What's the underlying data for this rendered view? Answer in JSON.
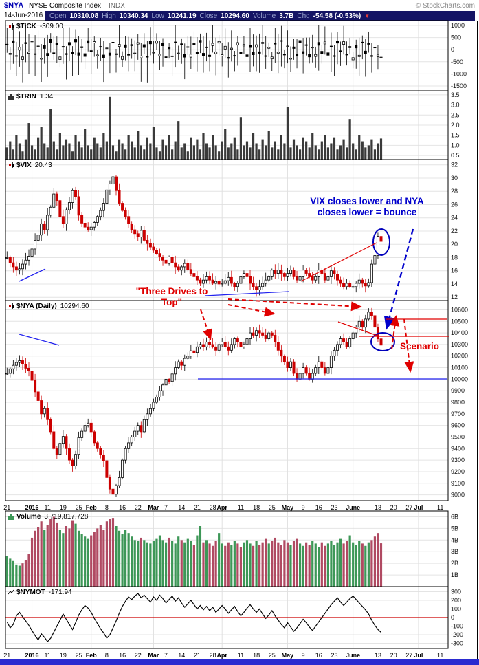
{
  "header": {
    "symbol": "$NYA",
    "name": "NYSE Composite Index",
    "exchange": "INDX",
    "copyright": "© StockCharts.com",
    "date": "14-Jun-2016",
    "quote": {
      "open_label": "Open",
      "open": "10310.08",
      "high_label": "High",
      "high": "10340.34",
      "low_label": "Low",
      "low": "10241.19",
      "close_label": "Close",
      "close": "10294.60",
      "volume_label": "Volume",
      "volume": "3.7B",
      "chg_label": "Chg",
      "chg": "-54.58 (-0.53%)"
    }
  },
  "panel_labels": {
    "tick": {
      "label": "$TICK",
      "value": "-309.00"
    },
    "trin": {
      "label": "$TRIN",
      "value": "1.34"
    },
    "vix": {
      "label": "$VIX",
      "value": "20.43"
    },
    "nya": {
      "label": "$NYA (Daily)",
      "value": "10294.60"
    },
    "volume": {
      "label": "Volume",
      "value": "3,719,817,728"
    },
    "nymot": {
      "label": "$NYMOT",
      "value": "-171.94"
    }
  },
  "annotations": {
    "vix_note_line1": "VIX closes lower and NYA",
    "vix_note_line2": "closes lower = bounce",
    "three_drives_line1": "\"Three Drives to",
    "three_drives_line2": "Top\"",
    "scenario": "Scenario"
  },
  "chart_data": {
    "slots": 142,
    "month_gridline_indices": [
      8,
      27,
      47,
      69,
      90,
      111,
      132
    ],
    "x_labels": [
      {
        "t": "21",
        "i": 0
      },
      {
        "t": "2016",
        "i": 8
      },
      {
        "t": "11",
        "i": 13
      },
      {
        "t": "19",
        "i": 18
      },
      {
        "t": "25",
        "i": 23
      },
      {
        "t": "Feb",
        "i": 27
      },
      {
        "t": "8",
        "i": 32
      },
      {
        "t": "16",
        "i": 37
      },
      {
        "t": "22",
        "i": 42
      },
      {
        "t": "Mar",
        "i": 47
      },
      {
        "t": "7",
        "i": 51
      },
      {
        "t": "14",
        "i": 56
      },
      {
        "t": "21",
        "i": 61
      },
      {
        "t": "28",
        "i": 66
      },
      {
        "t": "Apr",
        "i": 69
      },
      {
        "t": "11",
        "i": 75
      },
      {
        "t": "18",
        "i": 80
      },
      {
        "t": "25",
        "i": 85
      },
      {
        "t": "May",
        "i": 90
      },
      {
        "t": "9",
        "i": 95
      },
      {
        "t": "16",
        "i": 100
      },
      {
        "t": "23",
        "i": 105
      },
      {
        "t": "June",
        "i": 111
      },
      {
        "t": "13",
        "i": 119
      },
      {
        "t": "20",
        "i": 124
      },
      {
        "t": "27",
        "i": 129
      },
      {
        "t": "Jul",
        "i": 132
      },
      {
        "t": "11",
        "i": 139
      }
    ],
    "panels": [
      {
        "key": "tick",
        "type": "candlestick",
        "title": "$TICK",
        "last": -309.0,
        "ylim": [
          -1700,
          1200
        ],
        "axis_ticks": [
          1000,
          500,
          0,
          -500,
          -1000,
          -1500
        ],
        "axis_labels": [
          "1000",
          "500",
          "0",
          "-500",
          "-1000",
          "-1500"
        ],
        "values": [
          200,
          -150,
          300,
          -250,
          100,
          -300,
          250,
          -100,
          350,
          -200,
          150,
          -350,
          50,
          -250,
          300,
          -150,
          200,
          -300,
          100,
          -200,
          180,
          -170,
          320,
          -230,
          120,
          -280,
          270,
          -80,
          330,
          -220,
          130,
          -330,
          70,
          -230,
          280,
          -170,
          220,
          -280,
          80,
          -220,
          210,
          -140,
          290,
          -260,
          90,
          -310,
          240,
          -110,
          360,
          -190,
          160,
          -340,
          40,
          -260,
          310,
          -140,
          190,
          -310,
          110,
          -190,
          190,
          -160,
          310,
          -240,
          110,
          -290,
          260,
          -90,
          340,
          -210,
          140,
          -360,
          60,
          -240,
          290,
          -160,
          210,
          -290,
          90,
          -210,
          200,
          -150,
          300,
          -250,
          100,
          -300,
          250,
          -100,
          350,
          -200,
          150,
          -350,
          50,
          -250,
          300,
          -150,
          200,
          -300,
          100,
          -200,
          180,
          -170,
          320,
          -230,
          120,
          -280,
          270,
          -80,
          330,
          -220,
          130,
          -330,
          70,
          -230,
          280,
          -170,
          220,
          -280,
          80,
          -220,
          -309
        ]
      },
      {
        "key": "trin",
        "type": "bar",
        "title": "$TRIN",
        "last": 1.34,
        "ylim": [
          0.3,
          3.7
        ],
        "axis_ticks": [
          3.5,
          3.0,
          2.5,
          2.0,
          1.5,
          1.0,
          0.5
        ],
        "axis_labels": [
          "3.5",
          "3.0",
          "2.5",
          "2.0",
          "1.5",
          "1.0",
          "0.5"
        ],
        "values": [
          0.9,
          1.2,
          0.8,
          1.5,
          1.1,
          0.7,
          1.3,
          2.1,
          1.0,
          0.8,
          1.4,
          1.9,
          1.1,
          0.9,
          2.8,
          1.2,
          0.8,
          1.6,
          1.0,
          1.3,
          1.1,
          0.7,
          1.5,
          1.2,
          0.9,
          1.8,
          1.0,
          0.8,
          1.4,
          1.1,
          0.9,
          1.6,
          1.2,
          3.4,
          1.0,
          0.7,
          1.3,
          1.1,
          0.8,
          1.5,
          1.2,
          0.9,
          1.7,
          1.0,
          0.8,
          1.4,
          1.1,
          1.9,
          0.9,
          0.7,
          1.3,
          1.0,
          1.5,
          0.8,
          1.2,
          2.2,
          0.9,
          1.1,
          0.7,
          1.4,
          1.0,
          1.3,
          0.8,
          1.6,
          1.1,
          0.9,
          1.5,
          1.0,
          0.7,
          1.2,
          1.8,
          0.9,
          1.1,
          1.4,
          0.8,
          2.4,
          1.0,
          1.2,
          0.9,
          1.6,
          1.1,
          0.8,
          1.3,
          1.0,
          1.7,
          0.9,
          1.2,
          0.8,
          1.5,
          1.1,
          2.9,
          0.9,
          1.3,
          1.0,
          0.8,
          1.4,
          1.2,
          0.9,
          1.6,
          1.0,
          0.8,
          1.2,
          1.5,
          0.9,
          1.1,
          1.4,
          0.8,
          1.0,
          1.3,
          0.9,
          2.3,
          1.1,
          0.8,
          1.5,
          1.2,
          0.9,
          1.0,
          1.3,
          0.8,
          1.1,
          1.34
        ]
      },
      {
        "key": "vix",
        "type": "candlestick",
        "title": "$VIX",
        "last": 20.43,
        "ylim": [
          11.5,
          32.8
        ],
        "axis_ticks": [
          32,
          30,
          28,
          26,
          24,
          22,
          20,
          18,
          16,
          14,
          12
        ],
        "axis_labels": [
          "32",
          "30",
          "28",
          "26",
          "24",
          "22",
          "20",
          "18",
          "16",
          "14",
          "12"
        ],
        "values": [
          18.0,
          17.2,
          16.6,
          16.1,
          16.3,
          17.0,
          17.6,
          18.2,
          19.3,
          20.6,
          21.4,
          23.1,
          22.2,
          24.4,
          25.6,
          27.6,
          26.6,
          24.2,
          23.1,
          25.2,
          26.3,
          28.1,
          27.2,
          24.4,
          23.2,
          22.6,
          22.2,
          22.6,
          23.3,
          24.2,
          25.1,
          26.2,
          28.2,
          29.1,
          30.2,
          28.1,
          26.2,
          25.1,
          24.2,
          23.1,
          22.2,
          21.6,
          21.1,
          22.1,
          20.6,
          20.1,
          19.6,
          19.1,
          18.6,
          18.1,
          17.6,
          17.1,
          18.1,
          17.2,
          16.6,
          16.1,
          16.6,
          17.1,
          16.2,
          15.6,
          15.1,
          14.6,
          14.1,
          14.6,
          15.1,
          14.6,
          14.1,
          14.4,
          14.0,
          14.1,
          14.5,
          15.0,
          14.1,
          13.6,
          14.1,
          15.1,
          15.6,
          15.1,
          14.1,
          13.6,
          13.1,
          13.6,
          14.1,
          14.6,
          15.1,
          16.1,
          15.6,
          16.1,
          15.6,
          15.1,
          15.6,
          16.1,
          15.1,
          14.6,
          15.1,
          16.1,
          15.6,
          15.1,
          14.6,
          15.1,
          16.1,
          15.6,
          14.6,
          15.1,
          16.0,
          15.5,
          14.6,
          14.1,
          13.6,
          14.1,
          13.6,
          13.6,
          14.1,
          14.6,
          14.1,
          13.7,
          14.2,
          17.0,
          18.3,
          21.2,
          20.43
        ]
      },
      {
        "key": "nya",
        "type": "candlestick",
        "title": "$NYA (Daily)",
        "last": 10294.6,
        "ylim": [
          8950,
          10680
        ],
        "axis_ticks": [
          10600,
          10500,
          10400,
          10300,
          10200,
          10100,
          10000,
          9900,
          9800,
          9700,
          9600,
          9500,
          9400,
          9300,
          9200,
          9100,
          9000
        ],
        "axis_labels": [
          "10600",
          "10500",
          "10400",
          "10300",
          "10200",
          "10100",
          "10000",
          "9900",
          "9800",
          "9700",
          "9600",
          "9500",
          "9400",
          "9300",
          "9200",
          "9100",
          "9000"
        ],
        "values": [
          10050,
          10090,
          10120,
          10145,
          10160,
          10130,
          10095,
          10070,
          9990,
          9890,
          9815,
          9700,
          9745,
          9650,
          9545,
          9400,
          9350,
          9445,
          9505,
          9400,
          9300,
          9250,
          9350,
          9495,
          9550,
          9600,
          9620,
          9545,
          9450,
          9400,
          9345,
          9295,
          9150,
          9050,
          9005,
          9080,
          9150,
          9300,
          9400,
          9450,
          9500,
          9550,
          9600,
          9545,
          9650,
          9700,
          9745,
          9800,
          9845,
          9900,
          9950,
          10000,
          9980,
          10045,
          10100,
          10150,
          10120,
          10180,
          10200,
          10245,
          10230,
          10280,
          10300,
          10280,
          10320,
          10300,
          10280,
          10250,
          10300,
          10320,
          10280,
          10250,
          10300,
          10350,
          10320,
          10280,
          10300,
          10350,
          10400,
          10380,
          10420,
          10400,
          10380,
          10350,
          10400,
          10380,
          10320,
          10250,
          10200,
          10150,
          10100,
          10150,
          10050,
          10000,
          10050,
          10100,
          10050,
          10000,
          10050,
          10100,
          10150,
          10100,
          10050,
          10100,
          10200,
          10250,
          10300,
          10350,
          10320,
          10280,
          10350,
          10400,
          10450,
          10500,
          10450,
          10520,
          10580,
          10550,
          10450,
          10349,
          10294.6
        ]
      },
      {
        "key": "volume",
        "type": "bar",
        "color_by": "nya",
        "title": "Volume",
        "last": 3.719,
        "ylim": [
          0,
          6.5
        ],
        "axis_ticks": [
          6,
          5,
          4,
          3,
          2,
          1
        ],
        "axis_labels": [
          "6B",
          "5B",
          "4B",
          "3B",
          "2B",
          "1B"
        ],
        "values": [
          2.6,
          2.4,
          2.2,
          1.9,
          1.8,
          2.0,
          2.3,
          2.8,
          4.2,
          4.8,
          5.1,
          5.6,
          4.9,
          5.3,
          5.8,
          6.0,
          5.5,
          4.9,
          4.6,
          5.2,
          5.0,
          5.7,
          5.4,
          4.8,
          4.5,
          4.3,
          4.1,
          4.4,
          4.7,
          5.0,
          5.3,
          4.9,
          5.6,
          5.8,
          5.9,
          5.2,
          4.8,
          4.5,
          4.9,
          4.6,
          4.3,
          4.0,
          3.9,
          4.2,
          4.0,
          3.8,
          3.7,
          3.9,
          4.1,
          4.4,
          4.0,
          3.8,
          4.2,
          3.9,
          3.7,
          4.3,
          4.0,
          3.8,
          4.1,
          3.9,
          3.6,
          4.4,
          5.2,
          3.8,
          4.0,
          3.7,
          3.5,
          3.9,
          4.6,
          3.7,
          3.5,
          3.8,
          3.6,
          3.9,
          3.7,
          3.4,
          3.8,
          4.0,
          3.7,
          3.5,
          3.9,
          3.6,
          3.8,
          4.1,
          3.7,
          3.9,
          4.2,
          3.8,
          3.6,
          4.0,
          3.8,
          3.6,
          3.9,
          4.1,
          3.7,
          3.5,
          3.8,
          3.6,
          3.9,
          3.7,
          3.4,
          3.8,
          3.5,
          3.7,
          3.9,
          3.6,
          3.8,
          4.1,
          3.7,
          3.9,
          4.4,
          3.8,
          3.6,
          3.9,
          3.7,
          3.5,
          3.8,
          4.0,
          4.3,
          4.6,
          3.719
        ]
      },
      {
        "key": "nymot",
        "type": "line",
        "zero_line": 0,
        "title": "$NYMOT",
        "last": -171.94,
        "ylim": [
          -360,
          360
        ],
        "axis_ticks": [
          300,
          200,
          100,
          0,
          -100,
          -200,
          -300
        ],
        "axis_labels": [
          "300",
          "200",
          "100",
          "0",
          "-100",
          "-200",
          "-300"
        ],
        "values": [
          -50,
          -120,
          -80,
          20,
          60,
          10,
          -40,
          -90,
          -150,
          -210,
          -260,
          -190,
          -230,
          -280,
          -240,
          -170,
          -100,
          -30,
          40,
          -20,
          -80,
          -140,
          -60,
          30,
          90,
          140,
          110,
          60,
          -10,
          -70,
          -130,
          -180,
          -240,
          -200,
          -120,
          -40,
          50,
          130,
          190,
          240,
          210,
          250,
          280,
          230,
          260,
          220,
          180,
          240,
          200,
          260,
          220,
          170,
          210,
          250,
          190,
          230,
          170,
          120,
          160,
          200,
          150,
          100,
          140,
          90,
          130,
          80,
          120,
          60,
          100,
          140,
          100,
          50,
          90,
          130,
          70,
          20,
          60,
          110,
          150,
          100,
          60,
          100,
          40,
          -10,
          30,
          80,
          20,
          -30,
          -80,
          -120,
          -60,
          -110,
          -160,
          -120,
          -70,
          -20,
          -60,
          -110,
          -150,
          -100,
          -50,
          0,
          50,
          100,
          150,
          190,
          230,
          180,
          140,
          180,
          220,
          250,
          210,
          170,
          130,
          90,
          40,
          -30,
          -90,
          -140,
          -171.94
        ]
      }
    ]
  }
}
